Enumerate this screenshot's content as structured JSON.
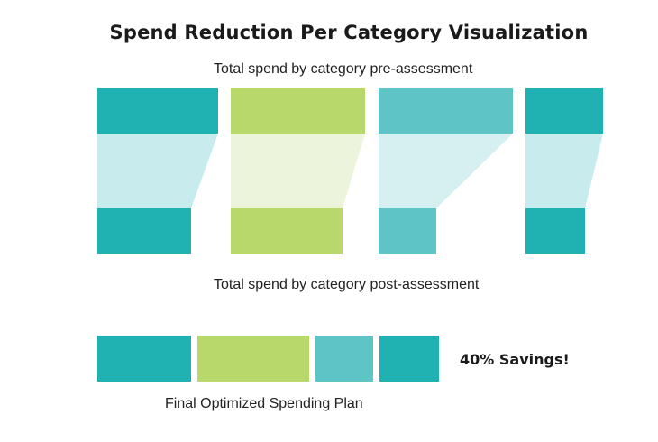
{
  "title": "Spend Reduction Per Category Visualization",
  "labels": {
    "pre": "Total spend by category pre-assessment",
    "post": "Total spend by category post-assessment",
    "final": "Final Optimized Spending Plan",
    "savings": "40% Savings!"
  },
  "categories": [
    {
      "color": "#20b2b2",
      "band_color": "#c8ebed"
    },
    {
      "color": "#b8d86b",
      "band_color": "#ecf5dc"
    },
    {
      "color": "#5fc4c6",
      "band_color": "#d6f0f1"
    },
    {
      "color": "#20b2b2",
      "band_color": "#c8ebed"
    }
  ]
}
